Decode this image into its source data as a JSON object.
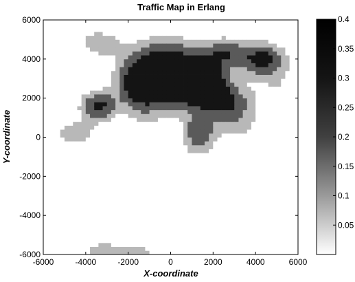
{
  "chart_data": {
    "type": "heatmap",
    "title": "Traffic Map in Erlang",
    "xlabel": "X-coordinate",
    "ylabel": "Y-coordinate",
    "xlim": [
      -6000,
      6000
    ],
    "ylim": [
      -6000,
      6000
    ],
    "x_ticks": [
      {
        "value": -6000,
        "label": "-6000"
      },
      {
        "value": -4000,
        "label": "-4000"
      },
      {
        "value": -2000,
        "label": "-2000"
      },
      {
        "value": 0,
        "label": "0"
      },
      {
        "value": 2000,
        "label": "2000"
      },
      {
        "value": 4000,
        "label": "4000"
      },
      {
        "value": 6000,
        "label": "6000"
      }
    ],
    "y_ticks": [
      {
        "value": 6000,
        "label": "6000"
      },
      {
        "value": 4000,
        "label": "4000"
      },
      {
        "value": 2000,
        "label": "2000"
      },
      {
        "value": 0,
        "label": "0"
      },
      {
        "value": -2000,
        "label": "-2000"
      },
      {
        "value": -4000,
        "label": "-4000"
      },
      {
        "value": -6000,
        "label": "-6000"
      }
    ],
    "colorbar": {
      "range": [
        0,
        0.4
      ],
      "ticks": [
        {
          "value": 0.4,
          "label": "0.4"
        },
        {
          "value": 0.35,
          "label": "0.35"
        },
        {
          "value": 0.3,
          "label": "0.3"
        },
        {
          "value": 0.25,
          "label": "0.25"
        },
        {
          "value": 0.2,
          "label": "0.2"
        },
        {
          "value": 0.15,
          "label": "0.15"
        },
        {
          "value": 0.1,
          "label": "0.1"
        },
        {
          "value": 0.05,
          "label": "0.05"
        }
      ]
    },
    "levels": [
      {
        "value": 0.05,
        "color": "#ffffff"
      },
      {
        "value": 0.12,
        "color": "#b8b8b8"
      },
      {
        "value": 0.22,
        "color": "#5a5a5a"
      },
      {
        "value": 0.33,
        "color": "#141414"
      }
    ],
    "hotspots": [
      {
        "x": -200,
        "y": 3800,
        "sx": 1300,
        "sy": 900,
        "a": 0.42
      },
      {
        "x": 400,
        "y": 2400,
        "sx": 1100,
        "sy": 700,
        "a": 0.42
      },
      {
        "x": -1500,
        "y": 2600,
        "sx": 700,
        "sy": 800,
        "a": 0.38
      },
      {
        "x": 1800,
        "y": 3000,
        "sx": 600,
        "sy": 800,
        "a": 0.33
      },
      {
        "x": 2700,
        "y": 1800,
        "sx": 800,
        "sy": 700,
        "a": 0.3
      },
      {
        "x": 4300,
        "y": 4000,
        "sx": 800,
        "sy": 600,
        "a": 0.38
      },
      {
        "x": 2600,
        "y": 4400,
        "sx": 600,
        "sy": 500,
        "a": 0.25
      },
      {
        "x": 1300,
        "y": 200,
        "sx": 550,
        "sy": 800,
        "a": 0.3
      },
      {
        "x": -3400,
        "y": 1600,
        "sx": 600,
        "sy": 550,
        "a": 0.36
      },
      {
        "x": -4500,
        "y": 200,
        "sx": 700,
        "sy": 500,
        "a": 0.18
      },
      {
        "x": -3300,
        "y": 4800,
        "sx": 700,
        "sy": 500,
        "a": 0.16
      },
      {
        "x": 3200,
        "y": 600,
        "sx": 900,
        "sy": 700,
        "a": 0.12
      },
      {
        "x": -3200,
        "y": -6000,
        "sx": 900,
        "sy": 700,
        "a": 0.16
      },
      {
        "x": -1400,
        "y": -6200,
        "sx": 700,
        "sy": 600,
        "a": 0.15
      },
      {
        "x": -1100,
        "y": 1000,
        "sx": 700,
        "sy": 500,
        "a": 0.1
      },
      {
        "x": 5100,
        "y": 2500,
        "sx": 800,
        "sy": 800,
        "a": 0.1
      },
      {
        "x": -4800,
        "y": 5800,
        "sx": 1000,
        "sy": 600,
        "a": 0.08
      }
    ]
  }
}
